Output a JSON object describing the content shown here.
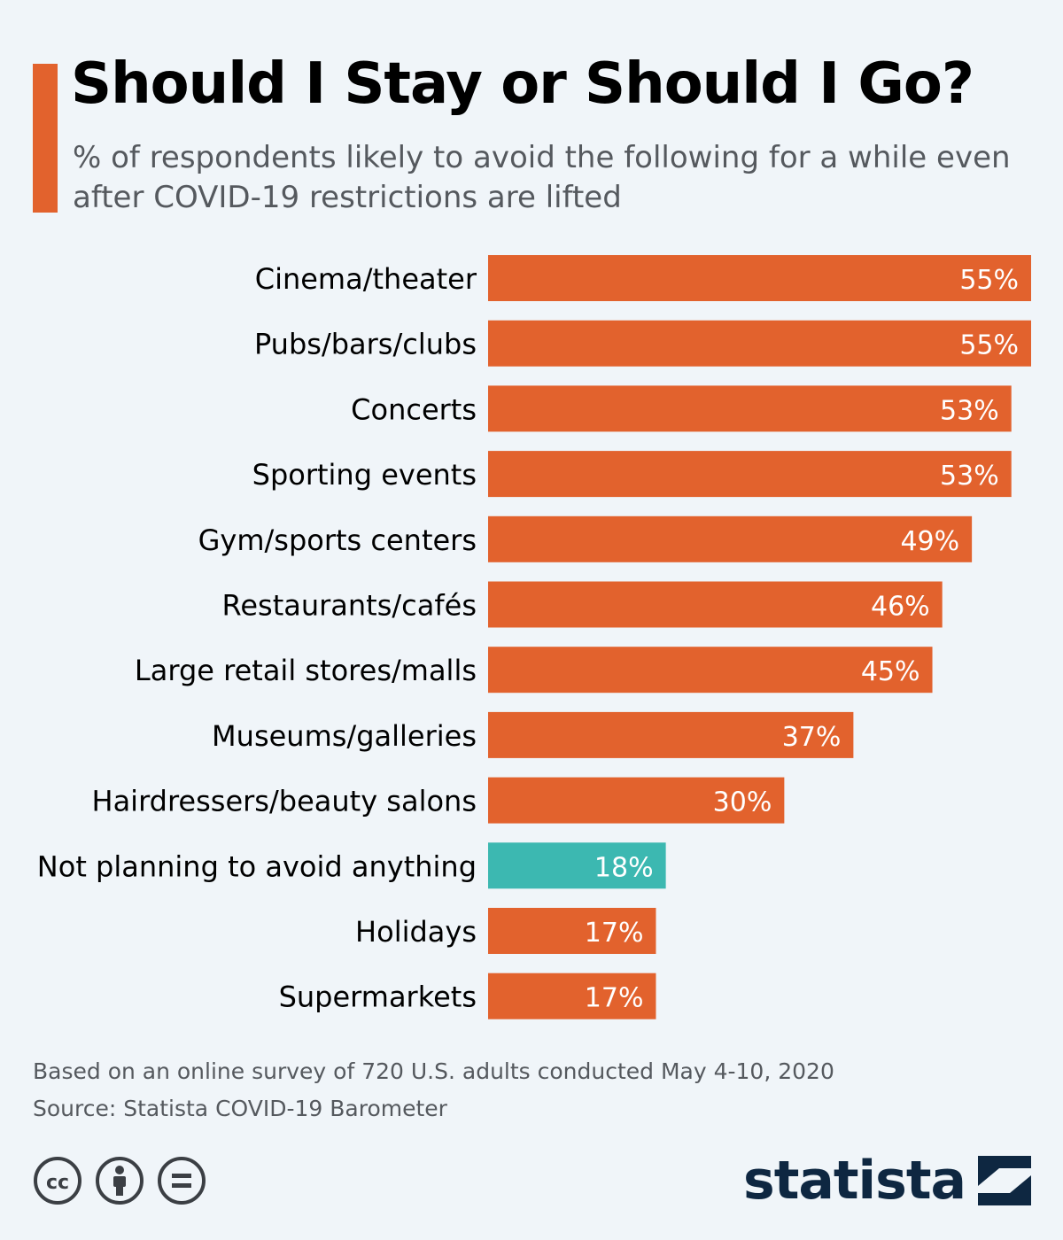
{
  "header": {
    "title": "Should I Stay or Should I Go?",
    "subtitle": "% of respondents likely to avoid the following for a while even after COVID-19 restrictions are lifted"
  },
  "colors": {
    "accent": "#e2622d",
    "highlight": "#3cb8b1",
    "background": "#f0f5f9",
    "brand": "#0e2741"
  },
  "chart_data": {
    "type": "bar",
    "orientation": "horizontal",
    "title": "Should I Stay or Should I Go?",
    "categories": [
      "Cinema/theater",
      "Pubs/bars/clubs",
      "Concerts",
      "Sporting events",
      "Gym/sports centers",
      "Restaurants/cafés",
      "Large retail stores/malls",
      "Museums/galleries",
      "Hairdressers/beauty salons",
      "Not planning to avoid anything",
      "Holidays",
      "Supermarkets"
    ],
    "values": [
      55,
      55,
      53,
      53,
      49,
      46,
      45,
      37,
      30,
      18,
      17,
      17
    ],
    "value_labels": [
      "55%",
      "55%",
      "53%",
      "53%",
      "49%",
      "46%",
      "45%",
      "37%",
      "30%",
      "18%",
      "17%",
      "17%"
    ],
    "highlighted": [
      "Not planning to avoid anything"
    ],
    "unit": "%",
    "xlim": [
      0,
      55
    ],
    "grid": false,
    "legend": "none"
  },
  "footer": {
    "note": "Based on an online survey of 720 U.S. adults conducted May 4-10, 2020",
    "source": "Source: Statista COVID-19 Barometer",
    "logo_text": "statista",
    "license_icons": [
      "cc-icon",
      "attribution-icon",
      "no-derivatives-icon"
    ]
  }
}
